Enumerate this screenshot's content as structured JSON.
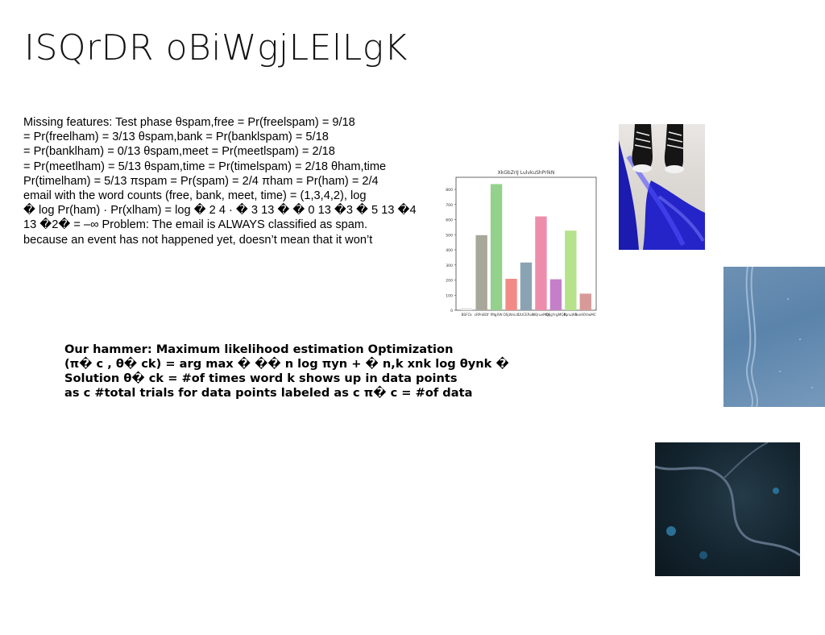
{
  "slide": {
    "title": "ISQrDR oBiWgjLElLgK",
    "body_lines": [
      "Missing features: Test phase θspam,free = Pr(freelspam) = 9/18",
      "= Pr(freelham) = 3/13 θspam,bank = Pr(banklspam) = 5/18",
      "= Pr(banklham) = 0/13 θspam,meet = Pr(meetlspam) = 2/18",
      "= Pr(meetlham) = 5/13 θspam,time = Pr(timelspam) = 2/18 θham,time",
      "Pr(timelham) = 5/13 πspam = Pr(spam) = 2/4 πham = Pr(ham) = 2/4",
      "email with the word counts (free, bank, meet, time) = (1,3,4,2), log",
      "� log Pr(ham) · Pr(xlham) = log � 2 4 · � 3 13 � � 0 13 �3 � 5 13 �4 �",
      "13 �2� = –∞ Problem: The email is ALWAYS classified as spam.",
      "because an event has not happened yet, doesn’t mean that it won’t"
    ],
    "hammer_lines": [
      "Our hammer: Maximum likelihood estimation Optimization",
      "(π� c , θ� ck) = arg max � �� n log πyn + � n,k xnk log θynk �",
      "Solution θ� ck = #of times word k shows up in data points",
      "as c #total trials for data points labeled as c π� c = #of data"
    ]
  },
  "chart_data": {
    "type": "bar",
    "title": "XkGbZrIJ LulvkuShPrlkN",
    "categories": [
      "BSFCk",
      "cRPnBOf",
      "fMgXW",
      "OSjWvLlC",
      "UUCERvR",
      "HQrueMOj",
      "Q6gYrgMQR",
      "fqnuWR",
      "bseXOVwMC"
    ],
    "values": [
      15,
      497,
      835,
      208,
      316,
      621,
      205,
      527,
      110
    ],
    "colors": [
      "#e5e5e5",
      "#a8a89a",
      "#94d18c",
      "#f28b86",
      "#8aa3b3",
      "#ee8cab",
      "#c57fc9",
      "#b5e28a",
      "#d79a98"
    ],
    "ylim": [
      0,
      880
    ],
    "yticks": [
      0,
      100,
      200,
      300,
      400,
      500,
      600,
      700,
      800
    ]
  },
  "photos": {
    "shoes_icon": "sneakers-photo",
    "snow_icon": "snow-tracks-photo",
    "river_icon": "aerial-river-photo"
  }
}
